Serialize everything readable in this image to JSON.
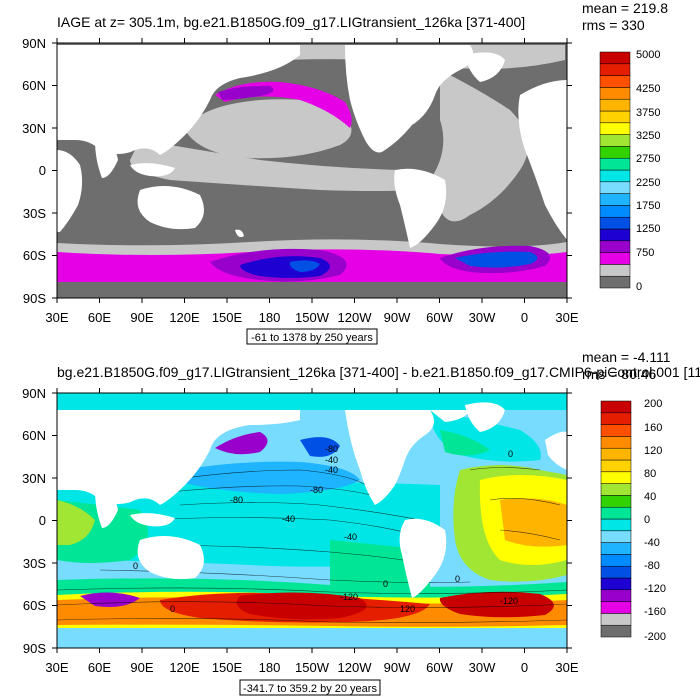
{
  "panels": [
    {
      "title": "IAGE at z= 305.1m, bg.e21.B1850G.f09_g17.LIGtransient_126ka [371-400]",
      "stats": [
        "mean = 219.8",
        "rms = 330"
      ],
      "lat_labels": [
        "90N",
        "60N",
        "30N",
        "0",
        "30S",
        "60S",
        "90S"
      ],
      "lon_labels": [
        "30E",
        "60E",
        "90E",
        "120E",
        "150E",
        "180",
        "150W",
        "120W",
        "90W",
        "60W",
        "30W",
        "0",
        "30E"
      ],
      "range_label": "-61 to 1378 by 250 years",
      "colorbar": {
        "colors": [
          "#6e6e6e",
          "#c8c8c8",
          "#e600e6",
          "#9900cc",
          "#1e00d2",
          "#0050e6",
          "#008cff",
          "#1eb4ff",
          "#78dcff",
          "#00e6e6",
          "#00e696",
          "#32d200",
          "#a0e632",
          "#ffff00",
          "#ffd200",
          "#ffb400",
          "#ff8c00",
          "#ff5000",
          "#e61e00",
          "#c80000"
        ],
        "labels": [
          "0",
          "750",
          "1250",
          "1750",
          "2250",
          "2750",
          "3250",
          "3750",
          "4250",
          "5000"
        ]
      },
      "map_colors": {
        "land": "#ffffff",
        "ocean_dark": "#6e6e6e",
        "ocean_light": "#c8c8c8",
        "high_lat": "#e600e6",
        "purple": "#9900cc",
        "deep_blue": "#1e00d2",
        "blue": "#0050e6"
      }
    },
    {
      "title": "bg.e21.B1850G.f09_g17.LIGtransient_126ka [371-400] - b.e21.B1850.f09_g17.CMIP6-piControl.001 [11",
      "stats": [
        "mean = -4.111",
        "rms = 80.46"
      ],
      "lat_labels": [
        "90N",
        "60N",
        "30N",
        "0",
        "30S",
        "60S",
        "90S"
      ],
      "lon_labels": [
        "30E",
        "60E",
        "90E",
        "120E",
        "150E",
        "180",
        "150W",
        "120W",
        "90W",
        "60W",
        "30W",
        "0",
        "30E"
      ],
      "range_label": "-341.7 to 359.2 by 20 years",
      "colorbar": {
        "colors": [
          "#6e6e6e",
          "#c8c8c8",
          "#e600e6",
          "#9900cc",
          "#1e00d2",
          "#0050e6",
          "#008cff",
          "#1eb4ff",
          "#78dcff",
          "#00e6e6",
          "#00e696",
          "#32d200",
          "#a0e632",
          "#ffff00",
          "#ffd200",
          "#ffb400",
          "#ff8c00",
          "#ff5000",
          "#e61e00",
          "#c80000"
        ],
        "labels": [
          "-200",
          "-160",
          "-120",
          "-80",
          "-40",
          "0",
          "40",
          "80",
          "120",
          "160",
          "200"
        ]
      },
      "contour_labels": [
        "-80",
        "-40",
        "-80",
        "-40",
        "0",
        "0",
        "-40",
        "-80",
        "-40",
        "0",
        "0",
        "-120",
        "120",
        "-120",
        "0"
      ],
      "map_colors": {
        "land": "#ffffff",
        "cyan": "#78dcff",
        "teal": "#00e6e6",
        "green": "#00e696",
        "yellow": "#ffff00",
        "orange": "#ffb400",
        "red": "#c80000",
        "purple": "#9900cc",
        "blue": "#0050e6"
      }
    }
  ]
}
